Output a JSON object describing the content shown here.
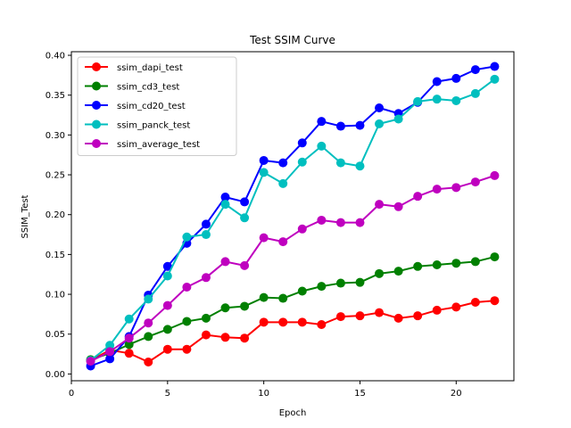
{
  "chart_data": {
    "type": "line",
    "title": "Test SSIM Curve",
    "xlabel": "Epoch",
    "ylabel": "SSIM_Test",
    "xlim": [
      0,
      23
    ],
    "ylim": [
      -0.0085,
      0.4045
    ],
    "xticks": [
      0,
      5,
      10,
      15,
      20
    ],
    "yticks": [
      0.0,
      0.05,
      0.1,
      0.15,
      0.2,
      0.25,
      0.3,
      0.35,
      0.4
    ],
    "ytick_labels": [
      "0.00",
      "0.05",
      "0.10",
      "0.15",
      "0.20",
      "0.25",
      "0.30",
      "0.35",
      "0.40"
    ],
    "grid": false,
    "legend_position": "upper-left",
    "x": [
      1,
      2,
      3,
      4,
      5,
      6,
      7,
      8,
      9,
      10,
      11,
      12,
      13,
      14,
      15,
      16,
      17,
      18,
      19,
      20,
      21,
      22
    ],
    "series": [
      {
        "name": "ssim_dapi_test",
        "color": "#ff0000",
        "values": [
          0.017,
          0.03,
          0.026,
          0.015,
          0.031,
          0.031,
          0.049,
          0.046,
          0.045,
          0.065,
          0.065,
          0.065,
          0.062,
          0.072,
          0.073,
          0.077,
          0.07,
          0.073,
          0.08,
          0.084,
          0.09,
          0.092
        ]
      },
      {
        "name": "ssim_cd3_test",
        "color": "#008000",
        "values": [
          0.018,
          0.026,
          0.037,
          0.047,
          0.056,
          0.066,
          0.07,
          0.083,
          0.085,
          0.096,
          0.095,
          0.104,
          0.11,
          0.114,
          0.115,
          0.126,
          0.129,
          0.135,
          0.137,
          0.139,
          0.141,
          0.147
        ]
      },
      {
        "name": "ssim_cd20_test",
        "color": "#0000ff",
        "values": [
          0.01,
          0.019,
          0.047,
          0.099,
          0.135,
          0.164,
          0.188,
          0.222,
          0.216,
          0.268,
          0.265,
          0.29,
          0.317,
          0.311,
          0.312,
          0.334,
          0.327,
          0.341,
          0.367,
          0.371,
          0.382,
          0.386
        ]
      },
      {
        "name": "ssim_panck_test",
        "color": "#00bfbf",
        "values": [
          0.017,
          0.036,
          0.069,
          0.094,
          0.123,
          0.172,
          0.175,
          0.213,
          0.196,
          0.253,
          0.239,
          0.266,
          0.286,
          0.265,
          0.261,
          0.314,
          0.32,
          0.342,
          0.345,
          0.343,
          0.352,
          0.37
        ]
      },
      {
        "name": "ssim_average_test",
        "color": "#bf00bf",
        "values": [
          0.016,
          0.028,
          0.045,
          0.064,
          0.086,
          0.109,
          0.121,
          0.141,
          0.136,
          0.171,
          0.166,
          0.182,
          0.193,
          0.19,
          0.19,
          0.213,
          0.21,
          0.223,
          0.232,
          0.234,
          0.241,
          0.249
        ]
      }
    ]
  }
}
